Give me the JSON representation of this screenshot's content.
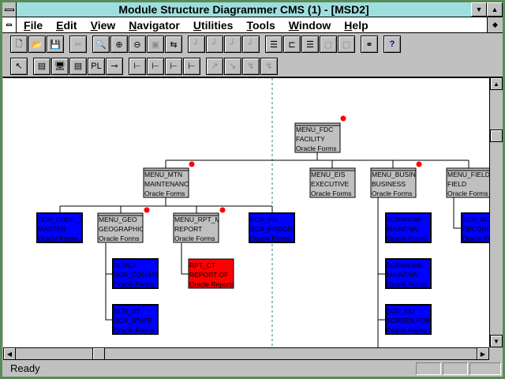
{
  "window": {
    "title": "Module Structure Diagrammer CMS (1) - [MSD2]"
  },
  "menu": [
    "File",
    "Edit",
    "View",
    "Navigator",
    "Utilities",
    "Tools",
    "Window",
    "Help"
  ],
  "toolbar1": [
    {
      "icon": "new-icon",
      "g": "🗋"
    },
    {
      "icon": "open-icon",
      "g": "📂"
    },
    {
      "icon": "save-icon",
      "g": "💾"
    },
    {
      "icon": "cut-icon",
      "g": "✂",
      "disabled": true
    },
    {
      "icon": "zoom-icon",
      "g": "🔍"
    },
    {
      "icon": "zoom-in-icon",
      "g": "⊕"
    },
    {
      "icon": "zoom-out-icon",
      "g": "⊖"
    },
    {
      "icon": "zoom-fit-icon",
      "g": "▣",
      "disabled": true
    },
    {
      "icon": "navigator-icon",
      "g": "⇆"
    },
    {
      "icon": "layout-1-icon",
      "g": "┘",
      "disabled": true
    },
    {
      "icon": "layout-2-icon",
      "g": "┘",
      "disabled": true
    },
    {
      "icon": "layout-3-icon",
      "g": "┘",
      "disabled": true
    },
    {
      "icon": "layout-4-icon",
      "g": "┘",
      "disabled": true
    },
    {
      "icon": "align-horizontal-icon",
      "g": "☰"
    },
    {
      "icon": "align-vertical-icon",
      "g": "⊏"
    },
    {
      "icon": "align-center-icon",
      "g": "☰"
    },
    {
      "icon": "same-size-icon",
      "g": "▢",
      "disabled": true
    },
    {
      "icon": "same-width-icon",
      "g": "▢",
      "disabled": true
    },
    {
      "icon": "link-icon",
      "g": "⚭"
    },
    {
      "icon": "help-icon",
      "g": "?"
    }
  ],
  "toolbar2": [
    {
      "icon": "pointer-icon",
      "g": "↖"
    },
    {
      "icon": "module-icon",
      "g": "▤"
    },
    {
      "icon": "screen-icon",
      "g": "🖥"
    },
    {
      "icon": "report-icon",
      "g": "▤"
    },
    {
      "icon": "plsql-icon",
      "g": "PL"
    },
    {
      "icon": "connector-icon",
      "g": "⊸"
    },
    {
      "icon": "tree-icon",
      "g": "⊢"
    },
    {
      "icon": "tree-red-icon",
      "g": "⊢"
    },
    {
      "icon": "tree-collapse-icon",
      "g": "⊢"
    },
    {
      "icon": "tree-green-icon",
      "g": "⊢"
    },
    {
      "icon": "call-1-icon",
      "g": "↗",
      "disabled": true
    },
    {
      "icon": "call-2-icon",
      "g": "↘",
      "disabled": true
    },
    {
      "icon": "call-3-icon",
      "g": "↯",
      "disabled": true
    },
    {
      "icon": "call-4-icon",
      "g": "↯",
      "disabled": true
    }
  ],
  "colors": {
    "menu_module": "#c0c0c0",
    "screen_module": "#0000ff",
    "report_module": "#ff0000",
    "guide": "#2a8a7a"
  },
  "nodes": {
    "fdc": {
      "name": "MENU_FDC",
      "desc": "FACILITY",
      "type": "Oracle Forms"
    },
    "mtn": {
      "name": "MENU_MTN",
      "desc": "MAINTENANCE",
      "type": "Oracle Forms"
    },
    "eis": {
      "name": "MENU_EIS",
      "desc": "EXECUTIVE",
      "type": "Oracle Forms"
    },
    "busi": {
      "name": "MENU_BUSINE",
      "desc": "BUSINESS",
      "type": "Oracle Forms"
    },
    "field": {
      "name": "MENU_FIELD",
      "desc": "FIELD",
      "type": "Oracle Forms"
    },
    "code": {
      "name": "SCR_CODE_T",
      "desc": "MASTER",
      "type": "Oracle Forms"
    },
    "geo": {
      "name": "MENU_GEO",
      "desc": "GEOGRAPHIC",
      "type": "Oracle Forms"
    },
    "rpt": {
      "name": "MENU_RPT_M",
      "desc": "REPORT",
      "type": "Oracle Forms"
    },
    "pr": {
      "name": "SCR_PR",
      "desc": "SCR_PROCESS",
      "type": "Oracle Forms"
    },
    "wkwp": {
      "name": "SCRWKWP",
      "desc": "MAINTAIN",
      "type": "Oracle Forms"
    },
    "wp": {
      "name": "SCR_WP",
      "desc": "RECONCI",
      "type": "Oracle Forms"
    },
    "cy": {
      "name": "SCRCY",
      "desc": "SCR_COUNTR",
      "type": "Oracle Forms"
    },
    "rptct": {
      "name": "RPT_CT",
      "desc": "REPORT OF",
      "type": "Oracle Reports"
    },
    "st": {
      "name": "SCR_ST",
      "desc": "SCR_STATE",
      "type": "Oracle Forms"
    },
    "wkwr": {
      "name": "SCRWKWR",
      "desc": "MAINTAIN",
      "type": "Oracle Forms"
    },
    "ou": {
      "name": "SCR_OU",
      "desc": "SCREEN FOR",
      "type": "Oracle Forms"
    }
  },
  "status": {
    "text": "Ready"
  }
}
